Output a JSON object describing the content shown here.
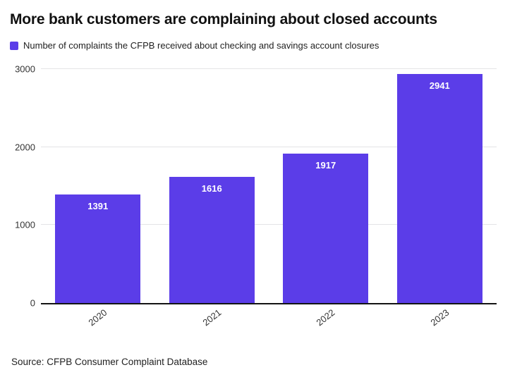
{
  "header": {
    "title": "More bank customers are complaining about closed accounts"
  },
  "legend": {
    "label": "Number of complaints the CFPB received about checking and savings account closures"
  },
  "source": {
    "text": "Source: CFPB Consumer Complaint Database"
  },
  "colors": {
    "bar": "#5b3de8",
    "baseline": "#141414",
    "gridline": "#e4e4e6",
    "value_label": "#ffffff"
  },
  "chart_data": {
    "type": "bar",
    "categories": [
      "2020",
      "2021",
      "2022",
      "2023"
    ],
    "values": [
      1391,
      1616,
      1917,
      2941
    ],
    "title": "More bank customers are complaining about closed accounts",
    "legend_label": "Number of complaints the CFPB received about checking and savings account closures",
    "xlabel": "",
    "ylabel": "",
    "ylim": [
      0,
      3000
    ],
    "yticks": [
      0,
      1000,
      2000,
      3000
    ],
    "grid": true,
    "legend_position": "top-left",
    "bar_color": "#5b3de8",
    "value_labels": true,
    "source": "Source: CFPB Consumer Complaint Database"
  }
}
